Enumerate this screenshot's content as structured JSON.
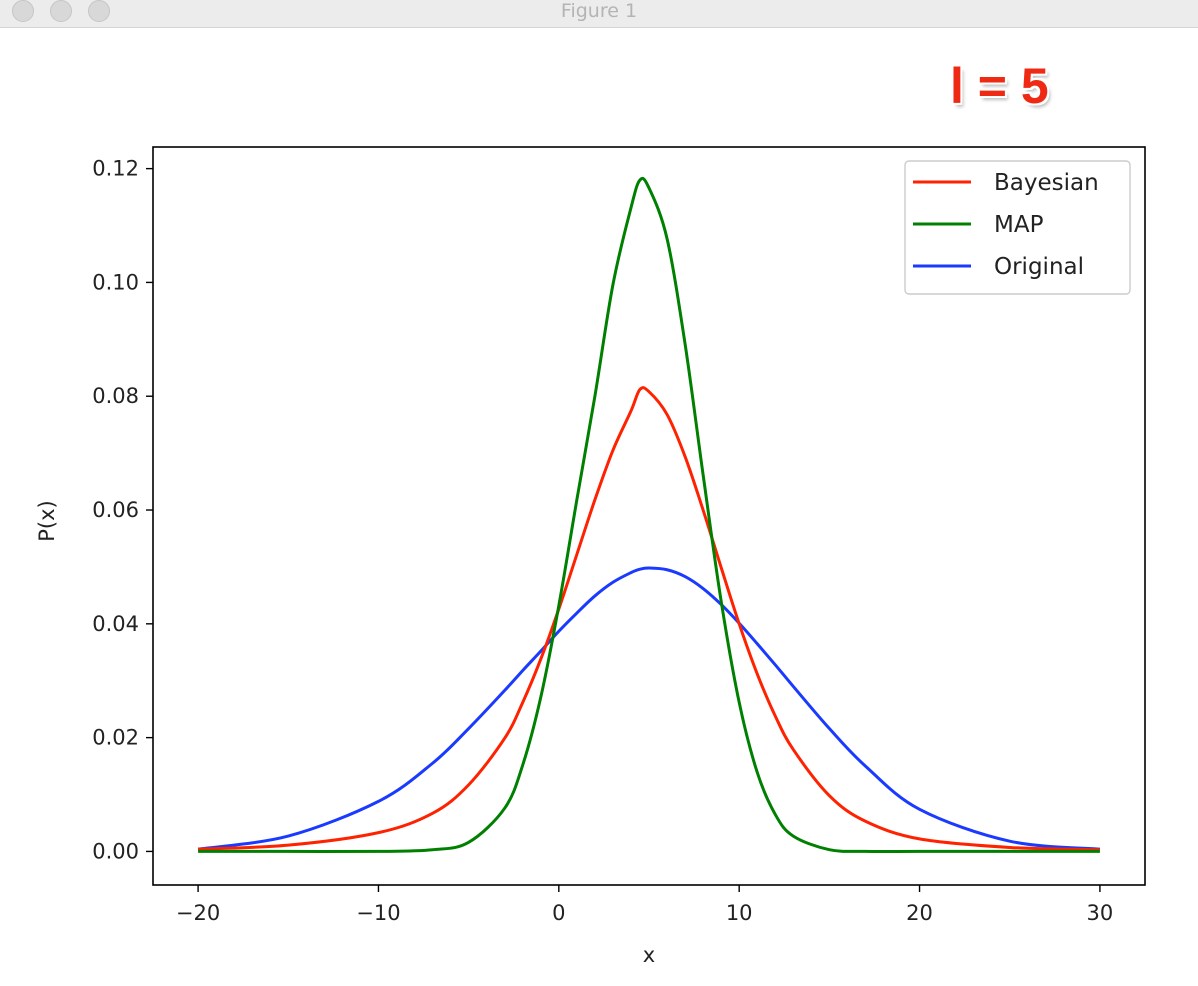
{
  "window": {
    "title": "Figure 1",
    "buttons": [
      "close",
      "minimize",
      "zoom"
    ]
  },
  "annotation": {
    "text": "l = 5",
    "color": "#ee2a14"
  },
  "chart_data": {
    "type": "line",
    "title": "",
    "xlabel": "x",
    "ylabel": "P(x)",
    "xlim": [
      -22.5,
      32.5
    ],
    "ylim": [
      -0.0059,
      0.1238
    ],
    "xticks": [
      -20,
      -10,
      0,
      10,
      20,
      30
    ],
    "xtick_labels": [
      "−20",
      "−10",
      "0",
      "10",
      "20",
      "30"
    ],
    "yticks": [
      0.0,
      0.02,
      0.04,
      0.06,
      0.08,
      0.1,
      0.12
    ],
    "ytick_labels": [
      "0.00",
      "0.02",
      "0.04",
      "0.06",
      "0.08",
      "0.10",
      "0.12"
    ],
    "grid": false,
    "legend_position": "top-right",
    "x": [
      -20,
      -15,
      -10,
      -7,
      -5,
      -3,
      -2,
      -1,
      0,
      1,
      2,
      3,
      4,
      4.5,
      5,
      6,
      7,
      8,
      9,
      10,
      11,
      12,
      13,
      15,
      17,
      20,
      25,
      30
    ],
    "series": [
      {
        "name": "Bayesian",
        "color": "#ff2200",
        "values": [
          0.0004,
          0.0011,
          0.0033,
          0.0067,
          0.0117,
          0.0199,
          0.0262,
          0.0338,
          0.0426,
          0.0522,
          0.0618,
          0.0705,
          0.0774,
          0.0812,
          0.0808,
          0.0768,
          0.0694,
          0.06,
          0.0499,
          0.04,
          0.0312,
          0.0238,
          0.0179,
          0.0098,
          0.0053,
          0.0022,
          0.0007,
          0.0003
        ]
      },
      {
        "name": "MAP",
        "color": "#008000",
        "values": [
          0.0,
          0.0,
          0.0,
          0.0003,
          0.0016,
          0.0076,
          0.0152,
          0.0271,
          0.0432,
          0.0618,
          0.08,
          0.0996,
          0.1131,
          0.118,
          0.1166,
          0.1077,
          0.0892,
          0.0662,
          0.044,
          0.0262,
          0.0139,
          0.0065,
          0.0027,
          0.0003,
          0.0,
          0.0,
          0.0,
          0.0
        ]
      },
      {
        "name": "Original",
        "color": "#1a3bff",
        "values": [
          0.0004,
          0.0027,
          0.0088,
          0.0155,
          0.0216,
          0.0283,
          0.0318,
          0.0352,
          0.0387,
          0.0419,
          0.0449,
          0.0473,
          0.049,
          0.0496,
          0.0498,
          0.0495,
          0.0483,
          0.0462,
          0.0434,
          0.0401,
          0.0365,
          0.0328,
          0.029,
          0.0216,
          0.015,
          0.0074,
          0.0018,
          0.0004
        ]
      }
    ]
  }
}
